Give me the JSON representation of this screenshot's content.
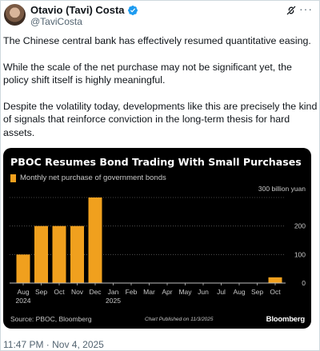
{
  "author": {
    "name": "Otavio (Tavi) Costa",
    "handle": "@TaviCosta"
  },
  "tweet": {
    "paragraphs": [
      "The Chinese central bank has effectively resumed quantitative easing.",
      "While the scale of the net purchase may not be significant yet, the policy shift itself is highly meaningful.",
      "Despite the volatility today, developments like this are precisely the kind of signals that reinforce conviction in the long-term thesis for hard assets."
    ],
    "timestamp": "11:47 PM · Nov 4, 2025"
  },
  "icons": {
    "verified": "verified-badge-icon",
    "grok": "grok-icon",
    "more": "more-options-icon"
  },
  "colors": {
    "bar": "#f0a01e",
    "card_background": "#000000",
    "verified": "#1d9bf0"
  },
  "chart_data": {
    "type": "bar",
    "title": "PBOC Resumes Bond Trading With Small Purchases",
    "legend": "Monthly net purchase of government bonds",
    "unit_label": "300 billion yuan",
    "categories": [
      "Aug",
      "Sep",
      "Oct",
      "Nov",
      "Dec",
      "Jan",
      "Feb",
      "Mar",
      "Apr",
      "May",
      "Jun",
      "Jul",
      "Aug",
      "Sep",
      "Oct"
    ],
    "year_labels": {
      "0": "2024",
      "5": "2025"
    },
    "values": [
      100,
      200,
      200,
      200,
      300,
      0,
      0,
      0,
      0,
      0,
      0,
      0,
      0,
      0,
      20
    ],
    "yticks": [
      0,
      100,
      200
    ],
    "ylim": [
      0,
      300
    ],
    "source": "Source: PBOC, Bloomberg",
    "published": "Chart Published on 11/3/2025",
    "brand": "Bloomberg"
  }
}
